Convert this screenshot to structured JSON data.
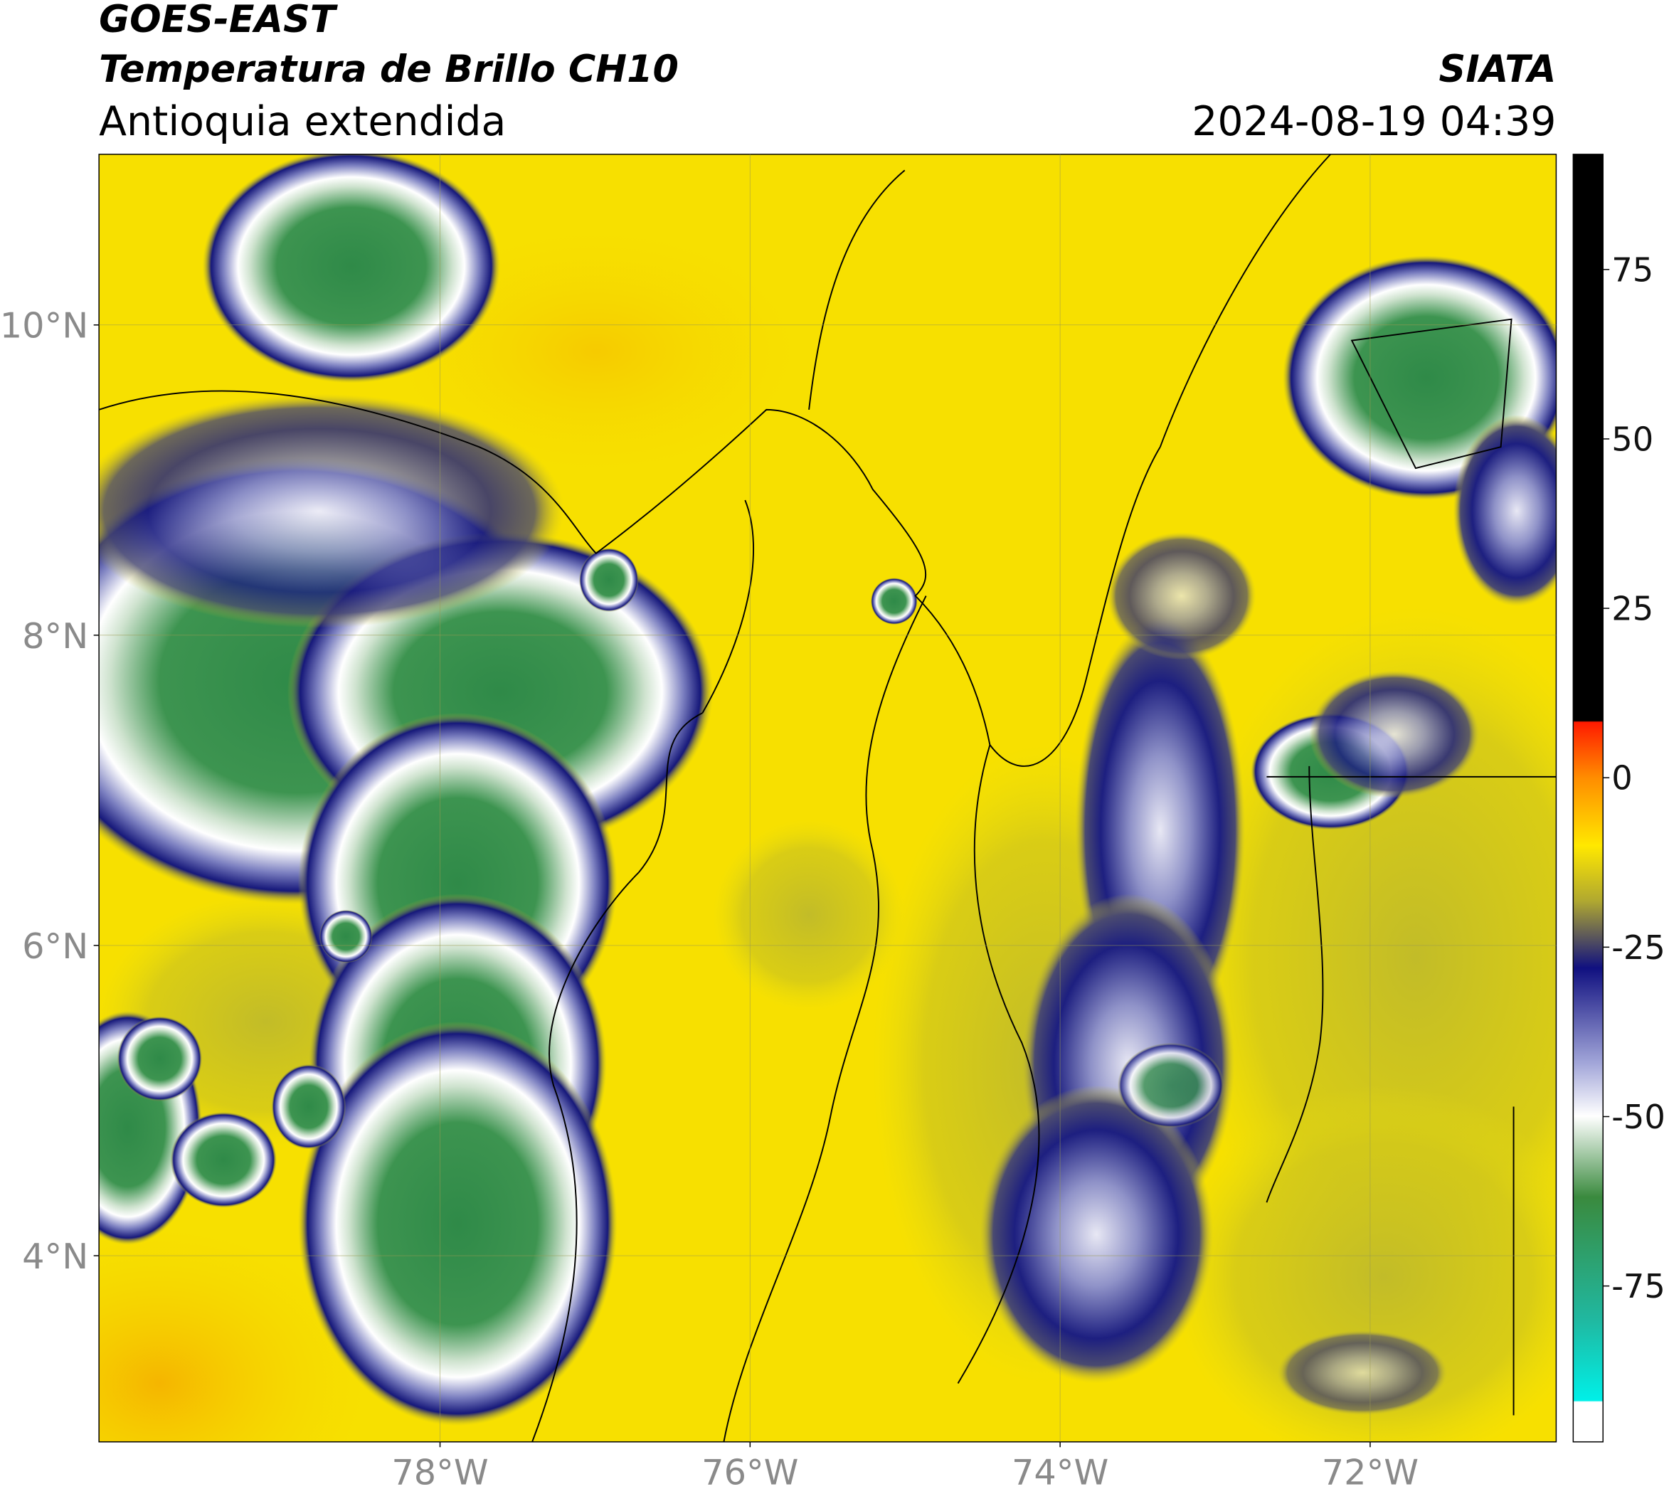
{
  "header": {
    "title": "GOES-EAST",
    "subtitle": "Temperatura de Brillo CH10",
    "region": "Antioquia extendida",
    "source": "SIATA",
    "datetime": "2024-08-19 04:39"
  },
  "map": {
    "xlim": [
      -80.2,
      -70.8
    ],
    "ylim": [
      2.8,
      11.1
    ],
    "xticks": [
      {
        "value": -78,
        "label": "78°W"
      },
      {
        "value": -76,
        "label": "76°W"
      },
      {
        "value": -74,
        "label": "74°W"
      },
      {
        "value": -72,
        "label": "72°W"
      }
    ],
    "yticks": [
      {
        "value": 4,
        "label": "4°N"
      },
      {
        "value": 6,
        "label": "6°N"
      },
      {
        "value": 8,
        "label": "8°N"
      },
      {
        "value": 10,
        "label": "10°N"
      }
    ],
    "grid": true
  },
  "colorbar": {
    "clim": [
      -98,
      92
    ],
    "ticks": [
      75,
      50,
      25,
      0,
      -25,
      -50,
      -75
    ]
  }
}
